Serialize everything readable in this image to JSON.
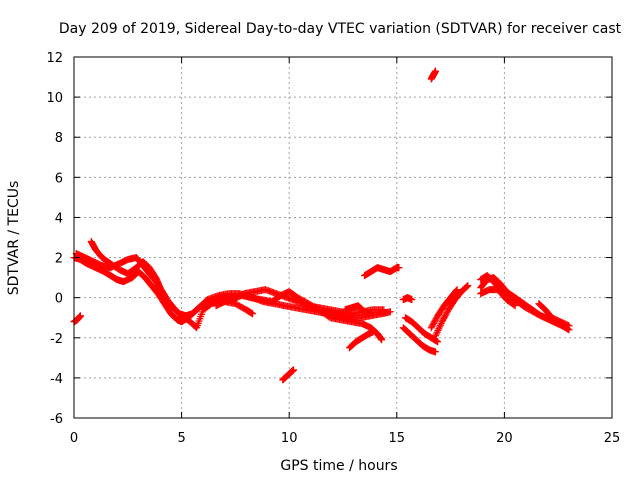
{
  "chart_data": {
    "type": "scatter",
    "title": "Day 209 of 2019, Sidereal Day-to-day VTEC variation (SDTVAR) for receiver cast",
    "xlabel": "GPS time / hours",
    "ylabel": "SDTVAR / TECUs",
    "xlim": [
      0,
      25
    ],
    "ylim": [
      -6,
      12
    ],
    "xticks": [
      0,
      5,
      10,
      15,
      20,
      25
    ],
    "yticks": [
      -6,
      -4,
      -2,
      0,
      2,
      4,
      6,
      8,
      10,
      12
    ],
    "grid": true,
    "marker": "plus",
    "color": "#ff0000",
    "series": [
      {
        "name": "main-trace-1",
        "points": [
          [
            0.0,
            2.0
          ],
          [
            0.3,
            1.9
          ],
          [
            0.6,
            1.7
          ],
          [
            1.0,
            1.5
          ],
          [
            1.4,
            1.3
          ],
          [
            1.7,
            1.1
          ],
          [
            2.0,
            0.9
          ],
          [
            2.3,
            0.8
          ],
          [
            2.7,
            1.0
          ],
          [
            3.0,
            1.3
          ],
          [
            3.3,
            1.0
          ],
          [
            3.6,
            0.6
          ],
          [
            3.9,
            0.2
          ],
          [
            4.2,
            -0.3
          ],
          [
            4.5,
            -0.8
          ],
          [
            4.8,
            -1.1
          ],
          [
            5.0,
            -1.2
          ],
          [
            5.3,
            -1.0
          ],
          [
            5.6,
            -0.7
          ],
          [
            5.9,
            -0.4
          ],
          [
            6.3,
            -0.2
          ],
          [
            6.8,
            -0.1
          ],
          [
            7.3,
            0.0
          ],
          [
            7.8,
            0.1
          ],
          [
            8.3,
            0.0
          ],
          [
            8.8,
            -0.2
          ],
          [
            9.3,
            -0.3
          ],
          [
            9.8,
            -0.4
          ],
          [
            10.3,
            -0.5
          ],
          [
            10.8,
            -0.6
          ],
          [
            11.3,
            -0.7
          ],
          [
            11.8,
            -0.8
          ],
          [
            12.3,
            -0.9
          ],
          [
            12.8,
            -1.0
          ],
          [
            13.3,
            -1.0
          ],
          [
            13.8,
            -0.9
          ],
          [
            14.3,
            -0.8
          ],
          [
            14.7,
            -0.7
          ]
        ]
      },
      {
        "name": "main-trace-2",
        "points": [
          [
            0.1,
            2.2
          ],
          [
            0.5,
            2.0
          ],
          [
            0.9,
            1.8
          ],
          [
            1.3,
            1.6
          ],
          [
            1.7,
            1.5
          ],
          [
            2.1,
            1.7
          ],
          [
            2.5,
            1.9
          ],
          [
            2.9,
            2.0
          ],
          [
            3.2,
            1.6
          ],
          [
            3.5,
            1.2
          ],
          [
            3.8,
            0.8
          ],
          [
            4.1,
            0.3
          ],
          [
            4.4,
            -0.2
          ],
          [
            4.7,
            -0.6
          ],
          [
            5.0,
            -0.9
          ],
          [
            5.4,
            -1.2
          ],
          [
            5.7,
            -1.5
          ],
          [
            6.0,
            -0.6
          ],
          [
            6.4,
            -0.3
          ],
          [
            6.9,
            -0.2
          ],
          [
            7.4,
            -0.1
          ],
          [
            7.9,
            0.2
          ],
          [
            8.4,
            0.3
          ],
          [
            8.9,
            0.4
          ],
          [
            9.4,
            0.2
          ],
          [
            9.9,
            0.0
          ],
          [
            10.4,
            -0.2
          ],
          [
            10.9,
            -0.4
          ],
          [
            11.4,
            -0.5
          ],
          [
            11.9,
            -0.6
          ],
          [
            12.4,
            -0.7
          ],
          [
            12.9,
            -0.8
          ],
          [
            13.4,
            -0.7
          ],
          [
            13.9,
            -0.6
          ],
          [
            14.4,
            -0.6
          ]
        ]
      },
      {
        "name": "main-trace-3",
        "points": [
          [
            0.8,
            2.8
          ],
          [
            1.0,
            2.4
          ],
          [
            1.3,
            2.0
          ],
          [
            1.7,
            1.7
          ],
          [
            2.1,
            1.4
          ],
          [
            2.5,
            1.2
          ],
          [
            2.9,
            1.5
          ],
          [
            3.2,
            1.8
          ],
          [
            3.5,
            1.5
          ],
          [
            3.8,
            1.0
          ],
          [
            4.0,
            0.5
          ],
          [
            4.3,
            -0.1
          ],
          [
            4.6,
            -0.5
          ],
          [
            4.9,
            -0.8
          ],
          [
            5.2,
            -0.9
          ],
          [
            5.5,
            -0.8
          ],
          [
            5.8,
            -0.5
          ],
          [
            6.2,
            -0.1
          ],
          [
            6.7,
            0.1
          ],
          [
            7.2,
            0.2
          ],
          [
            7.7,
            0.2
          ],
          [
            8.2,
            0.0
          ],
          [
            8.7,
            -0.1
          ],
          [
            9.2,
            -0.2
          ],
          [
            9.6,
            0.1
          ],
          [
            10.0,
            0.3
          ],
          [
            10.4,
            0.0
          ],
          [
            10.9,
            -0.3
          ],
          [
            11.4,
            -0.6
          ],
          [
            11.9,
            -1.0
          ],
          [
            12.4,
            -1.1
          ],
          [
            12.9,
            -1.2
          ],
          [
            13.4,
            -1.3
          ],
          [
            13.8,
            -1.5
          ],
          [
            14.1,
            -1.8
          ],
          [
            14.3,
            -2.1
          ]
        ]
      },
      {
        "name": "small-segment-start",
        "points": [
          [
            0.0,
            -1.2
          ],
          [
            0.15,
            -1.1
          ],
          [
            0.3,
            -0.9
          ]
        ]
      },
      {
        "name": "segment-hour-7",
        "points": [
          [
            6.6,
            -0.4
          ],
          [
            7.0,
            -0.2
          ],
          [
            7.5,
            -0.3
          ],
          [
            8.0,
            -0.6
          ],
          [
            8.3,
            -0.8
          ]
        ]
      },
      {
        "name": "segment-hour-10",
        "points": [
          [
            9.7,
            -4.1
          ],
          [
            9.9,
            -3.9
          ],
          [
            10.1,
            -3.7
          ],
          [
            10.2,
            -3.6
          ]
        ]
      },
      {
        "name": "segment-hour-12",
        "points": [
          [
            12.8,
            -2.5
          ],
          [
            13.1,
            -2.2
          ],
          [
            13.4,
            -2.0
          ],
          [
            13.7,
            -1.8
          ],
          [
            13.9,
            -1.7
          ]
        ]
      },
      {
        "name": "segment-hour-13",
        "points": [
          [
            12.6,
            -0.6
          ],
          [
            12.9,
            -0.5
          ],
          [
            13.2,
            -0.4
          ],
          [
            13.5,
            -0.7
          ],
          [
            13.8,
            -0.8
          ]
        ]
      },
      {
        "name": "segment-hour-14",
        "points": [
          [
            13.5,
            1.1
          ],
          [
            13.8,
            1.3
          ],
          [
            14.1,
            1.5
          ],
          [
            14.4,
            1.4
          ],
          [
            14.7,
            1.3
          ],
          [
            15.0,
            1.5
          ],
          [
            15.1,
            1.5
          ]
        ]
      },
      {
        "name": "segment-hour-15-small",
        "points": [
          [
            15.3,
            -0.1
          ],
          [
            15.5,
            0.0
          ],
          [
            15.7,
            -0.1
          ]
        ]
      },
      {
        "name": "segment-hour-15-a",
        "points": [
          [
            15.3,
            -1.5
          ],
          [
            15.6,
            -1.8
          ],
          [
            15.9,
            -2.1
          ],
          [
            16.2,
            -2.4
          ],
          [
            16.5,
            -2.6
          ],
          [
            16.8,
            -2.7
          ]
        ]
      },
      {
        "name": "segment-hour-15-b",
        "points": [
          [
            15.4,
            -1.0
          ],
          [
            15.7,
            -1.2
          ],
          [
            16.0,
            -1.5
          ],
          [
            16.3,
            -1.8
          ],
          [
            16.6,
            -2.0
          ],
          [
            16.9,
            -2.2
          ]
        ]
      },
      {
        "name": "segment-hour-17-spike",
        "points": [
          [
            16.6,
            10.9
          ],
          [
            16.7,
            11.1
          ],
          [
            16.8,
            11.3
          ]
        ]
      },
      {
        "name": "evening-trace-a",
        "points": [
          [
            16.8,
            -1.9
          ],
          [
            17.1,
            -1.2
          ],
          [
            17.4,
            -0.6
          ],
          [
            17.7,
            -0.1
          ],
          [
            18.0,
            0.3
          ],
          [
            18.3,
            0.6
          ]
        ]
      },
      {
        "name": "evening-trace-b",
        "points": [
          [
            16.6,
            -1.5
          ],
          [
            16.9,
            -0.9
          ],
          [
            17.2,
            -0.4
          ],
          [
            17.5,
            0.0
          ],
          [
            17.8,
            0.4
          ]
        ]
      },
      {
        "name": "evening-trace-c",
        "points": [
          [
            18.9,
            0.5
          ],
          [
            19.2,
            0.9
          ],
          [
            19.5,
            1.0
          ],
          [
            19.8,
            0.7
          ],
          [
            20.1,
            0.3
          ],
          [
            20.5,
            0.0
          ],
          [
            20.9,
            -0.3
          ],
          [
            21.3,
            -0.6
          ],
          [
            21.7,
            -0.9
          ],
          [
            22.1,
            -1.1
          ],
          [
            22.5,
            -1.3
          ],
          [
            22.9,
            -1.5
          ]
        ]
      },
      {
        "name": "evening-trace-d",
        "points": [
          [
            18.9,
            0.9
          ],
          [
            19.2,
            1.1
          ],
          [
            19.5,
            0.8
          ],
          [
            19.8,
            0.4
          ],
          [
            20.2,
            0.0
          ],
          [
            20.6,
            -0.2
          ],
          [
            21.0,
            -0.5
          ],
          [
            21.5,
            -0.8
          ],
          [
            21.9,
            -1.0
          ],
          [
            22.3,
            -1.2
          ],
          [
            22.7,
            -1.4
          ],
          [
            23.0,
            -1.6
          ]
        ]
      },
      {
        "name": "evening-trace-e",
        "points": [
          [
            18.9,
            0.2
          ],
          [
            19.3,
            0.4
          ],
          [
            19.7,
            0.4
          ],
          [
            20.1,
            -0.1
          ],
          [
            20.5,
            -0.4
          ]
        ]
      },
      {
        "name": "evening-trace-f",
        "points": [
          [
            21.6,
            -0.3
          ],
          [
            21.9,
            -0.6
          ],
          [
            22.2,
            -1.0
          ],
          [
            22.6,
            -1.2
          ],
          [
            23.0,
            -1.4
          ]
        ]
      }
    ]
  }
}
